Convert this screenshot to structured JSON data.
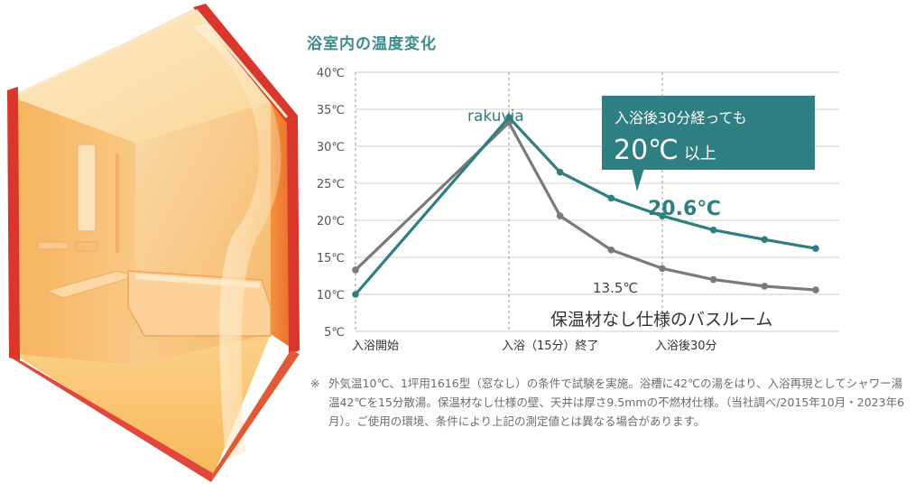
{
  "chart_title": "浴室内の温度変化",
  "chart_data": {
    "type": "line",
    "title": "浴室内の温度変化",
    "y_unit": "℃",
    "ylim": [
      5,
      40
    ],
    "yticks": [
      5,
      10,
      15,
      20,
      25,
      30,
      35,
      40
    ],
    "ytick_labels": [
      "5℃",
      "10℃",
      "15℃",
      "20℃",
      "25℃",
      "30℃",
      "35℃",
      "40℃"
    ],
    "x_minutes": [
      0,
      15,
      20,
      25,
      30,
      35,
      40,
      45
    ],
    "x_markers": [
      {
        "x": 0,
        "label": "入浴開始"
      },
      {
        "x": 15,
        "label": "入浴（15分）終了"
      },
      {
        "x": 30,
        "label": "入浴後30分"
      }
    ],
    "grid": "horizontal",
    "series": [
      {
        "name": "rakuvia",
        "color": "#2e7f82",
        "values": [
          10,
          33.9,
          26.5,
          23.0,
          20.6,
          18.7,
          17.4,
          16.2
        ]
      },
      {
        "name": "保温材なし仕様のバスルーム",
        "color": "#7a7a7a",
        "values": [
          13.3,
          33.2,
          20.6,
          16.0,
          13.5,
          12.0,
          11.1,
          10.6
        ]
      }
    ],
    "annotations": {
      "rakuvia_value": "20.6℃",
      "other_value": "13.5℃",
      "callout_line1": "入浴後30分経っても",
      "callout_line2_big": "20℃",
      "callout_line2_small": "以上"
    }
  },
  "footnote": {
    "mark": "※",
    "text": "外気温10℃、1坪用1616型（窓なし）の条件で試験を実施。浴槽に42℃の湯をはり、入浴再現としてシャワー湯温42℃を15分散湯。保温材なし仕様の壁、天井は厚さ9.5mmの不燃材仕様。（当社調べ/2015年10月・2023年6月）。ご使用の環境、条件により上記の測定値とは異なる場合があります。"
  },
  "colors": {
    "teal": "#2e7f82",
    "gray": "#7a7a7a",
    "title": "#3d8a8f",
    "warm_orange": "#f39a3c",
    "red_frame": "#d9362c"
  }
}
